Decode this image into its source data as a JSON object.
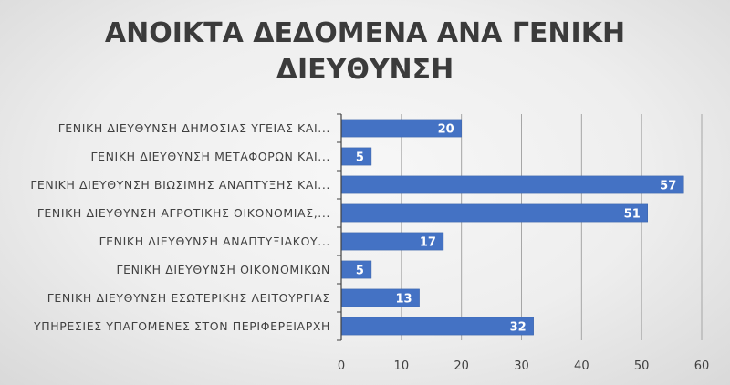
{
  "chart_data": {
    "type": "bar",
    "orientation": "horizontal",
    "title_lines": [
      "ΑΝΟΙΚΤΑ ΔΕΔΟΜΕΝΑ ΑΝΑ ΓΕΝΙΚΗ",
      "ΔΙΕΥΘΥΝΣΗ"
    ],
    "categories": [
      "ΓΕΝΙΚΗ ΔΙΕΥΘΥΝΣΗ ΔΗΜΟΣΙΑΣ ΥΓΕΙΑΣ ΚΑΙ...",
      "ΓΕΝΙΚΗ ΔΙΕΥΘΥΝΣΗ ΜΕΤΑΦΟΡΩΝ ΚΑΙ...",
      "ΓΕΝΙΚΗ ΔΙΕΥΘΥΝΣΗ ΒΙΩΣΙΜΗΣ ΑΝΑΠΤΥΞΗΣ ΚΑΙ...",
      "ΓΕΝΙΚΗ ΔΙΕΥΘΥΝΣΗ ΑΓΡΟΤΙΚΗΣ ΟΙΚΟΝΟΜΙΑΣ,...",
      "ΓΕΝΙΚΗ ΔΙΕΥΘΥΝΣΗ ΑΝΑΠΤΥΞΙΑΚΟΥ...",
      "ΓΕΝΙΚΗ ΔΙΕΥΘΥΝΣΗ ΟΙΚΟΝΟΜΙΚΩΝ",
      "ΓΕΝΙΚΗ ΔΙΕΥΘΥΝΣΗ ΕΣΩΤΕΡΙΚΗΣ ΛΕΙΤΟΥΡΓΙΑΣ",
      "ΥΠΗΡΕΣΙΕΣ ΥΠΑΓΟΜΕΝΕΣ ΣΤΟΝ ΠΕΡΙΦΕΡΕΙΑΡΧΗ"
    ],
    "values": [
      20,
      5,
      57,
      51,
      17,
      5,
      13,
      32
    ],
    "xlim": [
      0,
      60
    ],
    "xticks": [
      0,
      10,
      20,
      30,
      40,
      50,
      60
    ],
    "data_labels": true,
    "grid": "vertical",
    "legend": "none",
    "colors": {
      "bar": "#4472c4",
      "bar_edge": "#3a62a8",
      "grid": "#a6a6a6",
      "axis": "#404040",
      "text": "#404040",
      "title": "#3b3b3b",
      "data_label": "#ffffff"
    }
  }
}
